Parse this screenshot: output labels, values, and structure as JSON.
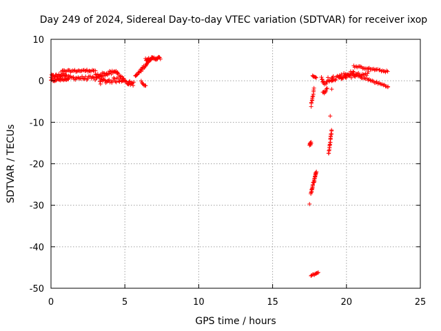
{
  "chart_data": {
    "type": "scatter",
    "title": "Day 249 of 2024, Sidereal Day-to-day VTEC variation (SDTVAR) for receiver ixop",
    "xlabel": "GPS time / hours",
    "ylabel": "SDTVAR / TECUs",
    "xlim": [
      0,
      25
    ],
    "ylim": [
      -50,
      10
    ],
    "xticks": [
      0,
      5,
      10,
      15,
      20,
      25
    ],
    "yticks": [
      -50,
      -40,
      -30,
      -20,
      -10,
      0,
      10
    ],
    "xtick_labels": [
      "0",
      "5",
      "10",
      "15",
      "20",
      "25"
    ],
    "ytick_labels": [
      "-50",
      "-40",
      "-30",
      "-20",
      "-10",
      "0",
      "10"
    ],
    "grid": true,
    "marker": "plus",
    "color": "#ff0000",
    "series": [
      {
        "name": "SDTVAR",
        "segments": [
          {
            "x0": 0.0,
            "x1": 1.0,
            "y0": 1.0,
            "y1": 1.5,
            "n": 26,
            "spread": 0.9
          },
          {
            "x0": 0.0,
            "x1": 1.2,
            "y0": 0.3,
            "y1": 0.2,
            "n": 26,
            "spread": 0.7
          },
          {
            "x0": 0.7,
            "x1": 3.0,
            "y0": 2.3,
            "y1": 2.5,
            "n": 34,
            "spread": 0.5
          },
          {
            "x0": 1.0,
            "x1": 3.5,
            "y0": 0.8,
            "y1": 0.5,
            "n": 40,
            "spread": 0.9
          },
          {
            "x0": 3.0,
            "x1": 4.5,
            "y0": 1.2,
            "y1": 2.2,
            "n": 30,
            "spread": 1.0
          },
          {
            "x0": 3.3,
            "x1": 5.0,
            "y0": -0.2,
            "y1": 0.4,
            "n": 30,
            "spread": 1.2
          },
          {
            "x0": 4.5,
            "x1": 5.3,
            "y0": 1.8,
            "y1": -0.8,
            "n": 14,
            "spread": 0.6
          },
          {
            "x0": 5.2,
            "x1": 5.6,
            "y0": -0.5,
            "y1": -0.7,
            "n": 10,
            "spread": 1.0
          },
          {
            "x0": 5.7,
            "x1": 6.6,
            "y0": 1.0,
            "y1": 4.6,
            "n": 24,
            "spread": 0.7
          },
          {
            "x0": 6.1,
            "x1": 6.4,
            "y0": -0.2,
            "y1": -1.3,
            "n": 7,
            "spread": 0.4
          },
          {
            "x0": 6.4,
            "x1": 7.4,
            "y0": 5.2,
            "y1": 5.5,
            "n": 30,
            "spread": 0.7
          },
          {
            "x0": 17.5,
            "x1": 17.6,
            "y0": -15.5,
            "y1": -15.0,
            "n": 8,
            "spread": 0.6
          },
          {
            "x0": 17.6,
            "x1": 17.95,
            "y0": -27.0,
            "y1": -22.0,
            "n": 32,
            "spread": 0.7
          },
          {
            "x0": 17.6,
            "x1": 18.1,
            "y0": -47.0,
            "y1": -46.2,
            "n": 10,
            "spread": 0.3
          },
          {
            "x0": 17.6,
            "x1": 17.8,
            "y0": -6.0,
            "y1": -2.0,
            "n": 12,
            "spread": 0.5
          },
          {
            "x0": 17.7,
            "x1": 17.95,
            "y0": 1.3,
            "y1": 0.8,
            "n": 6,
            "spread": 0.3
          },
          {
            "x0": 18.3,
            "x1": 18.5,
            "y0": 0.8,
            "y1": -1.0,
            "n": 8,
            "spread": 0.6
          },
          {
            "x0": 18.4,
            "x1": 18.7,
            "y0": -3.0,
            "y1": -2.0,
            "n": 8,
            "spread": 0.6
          },
          {
            "x0": 18.8,
            "x1": 19.0,
            "y0": -17.5,
            "y1": -12.0,
            "n": 22,
            "spread": 0.6
          },
          {
            "x0": 18.6,
            "x1": 19.1,
            "y0": -0.5,
            "y1": 0.8,
            "n": 10,
            "spread": 0.7
          },
          {
            "x0": 19.0,
            "x1": 20.5,
            "y0": 0.5,
            "y1": 2.0,
            "n": 28,
            "spread": 1.2
          },
          {
            "x0": 19.5,
            "x1": 21.5,
            "y0": 0.8,
            "y1": 1.8,
            "n": 30,
            "spread": 1.0
          },
          {
            "x0": 20.5,
            "x1": 22.8,
            "y0": 3.5,
            "y1": 2.2,
            "n": 32,
            "spread": 0.4
          },
          {
            "x0": 20.5,
            "x1": 22.8,
            "y0": 1.5,
            "y1": -1.4,
            "n": 32,
            "spread": 0.5
          }
        ],
        "points": [
          {
            "x": 17.5,
            "y": -29.7
          },
          {
            "x": 18.9,
            "y": -8.5
          },
          {
            "x": 18.75,
            "y": 0.8
          },
          {
            "x": 19.0,
            "y": -2.0
          },
          {
            "x": 22.8,
            "y": -1.5
          }
        ]
      }
    ]
  }
}
